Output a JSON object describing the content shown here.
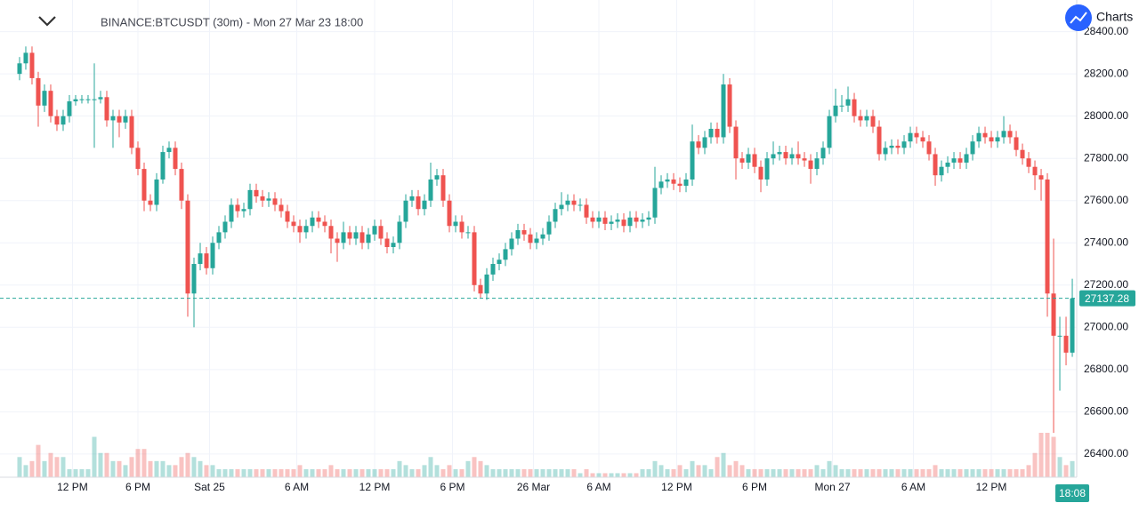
{
  "header": {
    "symbol_title": "BINANCE:BTCUSDT (30m) - Mon 27 Mar 23 18:00",
    "brand": "Charts"
  },
  "chart_data": {
    "type": "candlestick",
    "grid": true,
    "up_color": "#26a69a",
    "down_color": "#ef5350",
    "ylim": [
      26290,
      28550
    ],
    "yticks": [
      {
        "value": 26400,
        "label": "26400.00"
      },
      {
        "value": 26600,
        "label": "26600.00"
      },
      {
        "value": 26800,
        "label": "26800.00"
      },
      {
        "value": 27000,
        "label": "27000.00"
      },
      {
        "value": 27200,
        "label": "27200.00"
      },
      {
        "value": 27400,
        "label": "27400.00"
      },
      {
        "value": 27600,
        "label": "27600.00"
      },
      {
        "value": 27800,
        "label": "27800.00"
      },
      {
        "value": 28000,
        "label": "28000.00"
      },
      {
        "value": 28200,
        "label": "28200.00"
      },
      {
        "value": 28400,
        "label": "28400.00"
      }
    ],
    "xlim": [
      -3.14,
      169.71
    ],
    "xticks": [
      {
        "value": 8.5,
        "label": "12 PM"
      },
      {
        "value": 19,
        "label": "6 PM"
      },
      {
        "value": 30.5,
        "label": "Sat 25"
      },
      {
        "value": 44.5,
        "label": "6 AM"
      },
      {
        "value": 57,
        "label": "12 PM"
      },
      {
        "value": 69.5,
        "label": "6 PM"
      },
      {
        "value": 82.5,
        "label": "26 Mar"
      },
      {
        "value": 93,
        "label": "6 AM"
      },
      {
        "value": 105.5,
        "label": "12 PM"
      },
      {
        "value": 118,
        "label": "6 PM"
      },
      {
        "value": 130.5,
        "label": "Mon 27"
      },
      {
        "value": 143.5,
        "label": "6 AM"
      },
      {
        "value": 156,
        "label": "12 PM"
      }
    ],
    "crosshair_time": "18:08",
    "series": [
      {
        "name": "BTCUSDT",
        "open": [
          28200,
          28250,
          28300,
          28180,
          28050,
          28120,
          28000,
          27960,
          28000,
          28070,
          28080,
          28080,
          28080,
          28080,
          28090,
          27980,
          28000,
          27970,
          28000,
          27850,
          27750,
          27600,
          27580,
          27700,
          27830,
          27850,
          27750,
          27600,
          27160,
          27300,
          27350,
          27280,
          27400,
          27450,
          27500,
          27580,
          27550,
          27560,
          27650,
          27620,
          27600,
          27610,
          27580,
          27550,
          27500,
          27480,
          27450,
          27480,
          27520,
          27500,
          27480,
          27420,
          27400,
          27450,
          27420,
          27450,
          27400,
          27440,
          27480,
          27420,
          27380,
          27400,
          27500,
          27600,
          27620,
          27560,
          27600,
          27700,
          27720,
          27600,
          27480,
          27500,
          27450,
          27450,
          27200,
          27160,
          27250,
          27300,
          27320,
          27370,
          27420,
          27460,
          27440,
          27400,
          27420,
          27440,
          27500,
          27560,
          27580,
          27600,
          27580,
          27580,
          27520,
          27500,
          27520,
          27490,
          27500,
          27510,
          27480,
          27520,
          27500,
          27510,
          27520,
          27660,
          27690,
          27700,
          27680,
          27670,
          27700,
          27880,
          27850,
          27900,
          27940,
          27900,
          28150,
          27950,
          27800,
          27780,
          27820,
          27760,
          27700,
          27800,
          27820,
          27830,
          27800,
          27820,
          27800,
          27790,
          27750,
          27800,
          27850,
          28000,
          28050,
          28050,
          28080,
          28000,
          27980,
          28000,
          27950,
          27820,
          27850,
          27860,
          27850,
          27880,
          27920,
          27900,
          27880,
          27820,
          27720,
          27760,
          27780,
          27800,
          27780,
          27820,
          27880,
          27920,
          27900,
          27880,
          27900,
          27930,
          27900,
          27840,
          27800,
          27760,
          27720,
          27700,
          27160,
          26960,
          26960,
          26880
        ],
        "high": [
          28280,
          28330,
          28330,
          28210,
          28150,
          28150,
          28030,
          28030,
          28100,
          28100,
          28100,
          28100,
          28250,
          28120,
          28120,
          28030,
          28030,
          28030,
          28030,
          27880,
          27780,
          27630,
          27730,
          27860,
          27880,
          27880,
          27780,
          27630,
          27330,
          27400,
          27380,
          27430,
          27480,
          27530,
          27610,
          27610,
          27590,
          27680,
          27680,
          27650,
          27640,
          27640,
          27610,
          27580,
          27530,
          27510,
          27510,
          27550,
          27550,
          27530,
          27510,
          27450,
          27500,
          27480,
          27480,
          27480,
          27470,
          27510,
          27510,
          27450,
          27430,
          27530,
          27630,
          27650,
          27650,
          27630,
          27780,
          27750,
          27750,
          27630,
          27530,
          27530,
          27480,
          27480,
          27230,
          27280,
          27330,
          27350,
          27400,
          27450,
          27490,
          27490,
          27470,
          27450,
          27470,
          27530,
          27590,
          27640,
          27630,
          27630,
          27610,
          27610,
          27550,
          27550,
          27550,
          27530,
          27540,
          27540,
          27550,
          27550,
          27540,
          27550,
          27760,
          27720,
          27730,
          27730,
          27710,
          27730,
          27960,
          27910,
          27930,
          27970,
          27970,
          28200,
          28180,
          27980,
          27830,
          27850,
          27850,
          27790,
          27830,
          27880,
          27860,
          27860,
          27850,
          27880,
          27830,
          27820,
          27830,
          27880,
          28030,
          28130,
          28100,
          28140,
          28110,
          28030,
          28030,
          28030,
          27980,
          27880,
          27890,
          27890,
          27910,
          27950,
          27950,
          27930,
          27910,
          27850,
          27790,
          27810,
          27830,
          27830,
          27850,
          27910,
          27950,
          27950,
          27930,
          27930,
          28000,
          27960,
          27930,
          27870,
          27830,
          27790,
          27750,
          27730,
          27420,
          27050,
          27050,
          27230
        ],
        "low": [
          28170,
          28220,
          28150,
          27950,
          28020,
          27970,
          27930,
          27930,
          27970,
          28050,
          28060,
          28060,
          27850,
          28060,
          27950,
          27850,
          27900,
          27940,
          27820,
          27720,
          27550,
          27550,
          27550,
          27680,
          27800,
          27720,
          27560,
          27050,
          27000,
          27270,
          27250,
          27250,
          27370,
          27420,
          27470,
          27520,
          27520,
          27530,
          27590,
          27570,
          27570,
          27550,
          27520,
          27470,
          27450,
          27400,
          27420,
          27450,
          27470,
          27450,
          27350,
          27310,
          27370,
          27390,
          27390,
          27370,
          27370,
          27410,
          27390,
          27350,
          27350,
          27370,
          27470,
          27570,
          27530,
          27530,
          27570,
          27670,
          27570,
          27450,
          27450,
          27420,
          27420,
          27170,
          27140,
          27130,
          27220,
          27270,
          27290,
          27340,
          27390,
          27410,
          27370,
          27370,
          27390,
          27410,
          27470,
          27530,
          27550,
          27550,
          27550,
          27490,
          27470,
          27470,
          27460,
          27460,
          27470,
          27450,
          27450,
          27470,
          27470,
          27480,
          27490,
          27630,
          27660,
          27650,
          27640,
          27640,
          27670,
          27820,
          27820,
          27870,
          27870,
          27870,
          27920,
          27700,
          27750,
          27750,
          27730,
          27640,
          27670,
          27770,
          27790,
          27770,
          27770,
          27770,
          27760,
          27680,
          27720,
          27770,
          27820,
          27970,
          28020,
          28020,
          27970,
          27950,
          27950,
          27920,
          27790,
          27790,
          27820,
          27820,
          27820,
          27850,
          27870,
          27850,
          27790,
          27670,
          27690,
          27730,
          27750,
          27750,
          27750,
          27790,
          27850,
          27870,
          27850,
          27850,
          27870,
          27870,
          27810,
          27770,
          27730,
          27650,
          27600,
          27050,
          26500,
          26700,
          26820,
          26860
        ],
        "close": [
          28250,
          28300,
          28180,
          28050,
          28120,
          28000,
          27960,
          28000,
          28070,
          28080,
          28080,
          28080,
          28080,
          28090,
          27980,
          28000,
          27970,
          28000,
          27850,
          27750,
          27600,
          27580,
          27700,
          27830,
          27850,
          27750,
          27600,
          27160,
          27300,
          27350,
          27280,
          27400,
          27450,
          27500,
          27580,
          27550,
          27560,
          27650,
          27620,
          27600,
          27610,
          27580,
          27550,
          27500,
          27480,
          27450,
          27480,
          27520,
          27500,
          27480,
          27420,
          27400,
          27450,
          27420,
          27450,
          27400,
          27440,
          27480,
          27420,
          27380,
          27400,
          27500,
          27600,
          27620,
          27560,
          27600,
          27700,
          27720,
          27600,
          27480,
          27500,
          27450,
          27450,
          27200,
          27160,
          27250,
          27300,
          27320,
          27370,
          27420,
          27460,
          27440,
          27400,
          27420,
          27440,
          27500,
          27560,
          27580,
          27600,
          27580,
          27580,
          27520,
          27500,
          27520,
          27490,
          27500,
          27510,
          27480,
          27520,
          27500,
          27510,
          27520,
          27660,
          27690,
          27700,
          27680,
          27670,
          27700,
          27880,
          27850,
          27900,
          27940,
          27900,
          28150,
          27950,
          27800,
          27780,
          27820,
          27760,
          27700,
          27800,
          27820,
          27830,
          27800,
          27820,
          27800,
          27790,
          27750,
          27800,
          27850,
          28000,
          28050,
          28050,
          28080,
          28000,
          27980,
          28000,
          27950,
          27820,
          27850,
          27860,
          27850,
          27880,
          27920,
          27900,
          27880,
          27820,
          27720,
          27760,
          27780,
          27800,
          27780,
          27820,
          27880,
          27920,
          27900,
          27880,
          27900,
          27930,
          27900,
          27840,
          27800,
          27760,
          27720,
          27700,
          27160,
          26960,
          26960,
          26880,
          27137.28
        ],
        "volume": [
          5,
          3,
          4,
          8,
          4,
          6,
          5,
          5,
          2,
          2,
          2,
          2,
          10,
          6,
          6,
          4,
          4,
          3,
          5,
          7,
          7,
          4,
          4,
          4,
          3,
          3,
          5,
          6,
          5,
          4,
          3,
          3,
          2,
          2,
          2,
          2,
          2,
          2,
          2,
          2,
          2,
          2,
          2,
          2,
          2,
          3,
          2,
          2,
          2,
          2,
          3,
          2,
          2,
          2,
          2,
          2,
          2,
          2,
          2,
          2,
          2,
          4,
          3,
          2,
          2,
          3,
          5,
          3,
          2,
          3,
          2,
          2,
          4,
          5,
          4,
          3,
          2,
          2,
          2,
          2,
          2,
          2,
          2,
          2,
          2,
          2,
          2,
          2,
          2,
          2,
          1,
          2,
          1,
          1,
          1,
          1,
          1,
          1,
          1,
          1,
          2,
          2,
          4,
          3,
          2,
          2,
          3,
          2,
          4,
          3,
          3,
          2,
          5,
          6,
          3,
          4,
          3,
          2,
          2,
          2,
          2,
          2,
          2,
          2,
          2,
          2,
          2,
          2,
          3,
          2,
          4,
          3,
          2,
          2,
          2,
          2,
          2,
          2,
          2,
          2,
          2,
          2,
          2,
          2,
          2,
          2,
          2,
          3,
          2,
          2,
          2,
          2,
          2,
          2,
          2,
          2,
          2,
          2,
          2,
          2,
          2,
          2,
          3,
          6,
          11,
          11,
          10,
          5,
          3,
          4
        ]
      }
    ]
  }
}
